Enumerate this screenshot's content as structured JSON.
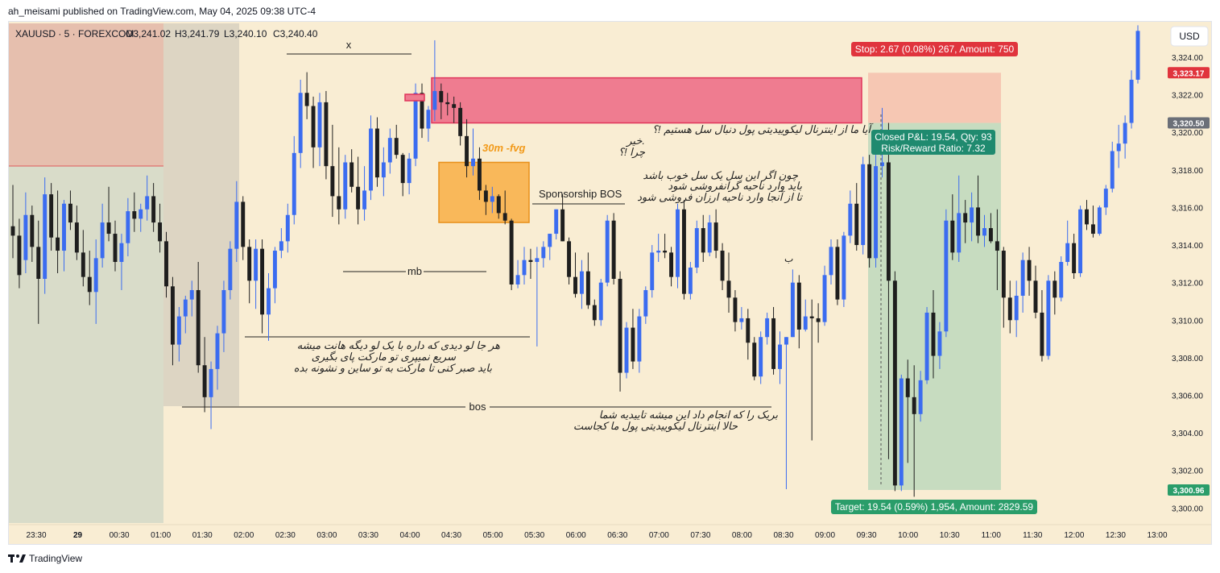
{
  "header": {
    "publisher": "ah_meisami published on TradingView.com, May 04, 2025 09:38 UTC-4"
  },
  "footer": {
    "brand": "TradingView"
  },
  "legend": {
    "symbol": "XAUUSD · 5 · FOREXCOM",
    "open": "O3,241.02",
    "high": "H3,241.79",
    "low": "L3,240.10",
    "close": "C3,240.40"
  },
  "currency_button": "USD",
  "colors": {
    "up": "#3b6cf0",
    "down": "#1e1e1e",
    "background": "#f9edd3",
    "stop_zone": "#f6c7b3",
    "target_zone": "#c7dcc0",
    "supply_zone": "#ef7c90",
    "fvg_zone": "#f9b85a",
    "stop_label": "#e0343d",
    "target_label": "#2a9d6a",
    "pnl_label": "#1f8a6f"
  },
  "chart_data": {
    "type": "candlestick",
    "title": "XAUUSD · 5 · FOREXCOM",
    "ylim": [
      3299.2,
      3325.8
    ],
    "y_ticks": [
      "3,324.00",
      "3,322.00",
      "3,320.00",
      "3,318.00",
      "3,316.00",
      "3,314.00",
      "3,312.00",
      "3,310.00",
      "3,308.00",
      "3,306.00",
      "3,304.00",
      "3,302.00",
      "3,300.00"
    ],
    "x_ticks": [
      "23:30",
      "29",
      "00:30",
      "01:00",
      "01:30",
      "02:00",
      "02:30",
      "03:00",
      "03:30",
      "04:00",
      "04:30",
      "05:00",
      "05:30",
      "06:00",
      "06:30",
      "07:00",
      "07:30",
      "08:00",
      "08:30",
      "09:00",
      "09:30",
      "10:00",
      "10:30",
      "11:00",
      "11:30",
      "12:00",
      "12:30",
      "13:00"
    ],
    "price_tags": [
      {
        "value": 3323.17,
        "text": "3,323.17",
        "color": "#e0343d"
      },
      {
        "value": 3320.5,
        "text": "3,320.50",
        "color": "#6b6f78"
      },
      {
        "value": 3300.96,
        "text": "3,300.96",
        "color": "#2a9d6a"
      }
    ],
    "candles": [
      [
        3315,
        3317.2,
        3313.3,
        3314.5
      ],
      [
        3314.5,
        3315.4,
        3311.7,
        3312.4
      ],
      [
        3313.2,
        3316.8,
        3312.5,
        3315.6
      ],
      [
        3315.6,
        3316.1,
        3313.1,
        3313.9
      ],
      [
        3313.9,
        3315.3,
        3309.8,
        3312.2
      ],
      [
        3312.2,
        3317.6,
        3311.4,
        3316.7
      ],
      [
        3316.7,
        3317.3,
        3313.7,
        3314.4
      ],
      [
        3314.4,
        3316.9,
        3312.5,
        3313.7
      ],
      [
        3313.7,
        3316.4,
        3312.6,
        3316.2
      ],
      [
        3316.2,
        3316.9,
        3314.8,
        3315.2
      ],
      [
        3315.2,
        3316.1,
        3313.2,
        3313.6
      ],
      [
        3313.6,
        3314.8,
        3311.8,
        3312.3
      ],
      [
        3312.3,
        3313.7,
        3310.8,
        3311.5
      ],
      [
        3311.5,
        3314.3,
        3309.8,
        3313.3
      ],
      [
        3313.3,
        3316.2,
        3312.8,
        3315.2
      ],
      [
        3315.2,
        3317.1,
        3314.2,
        3314.6
      ],
      [
        3314.6,
        3315.3,
        3312.6,
        3313.1
      ],
      [
        3313.1,
        3314.6,
        3311.6,
        3314.1
      ],
      [
        3314.1,
        3316.5,
        3313.4,
        3315.8
      ],
      [
        3315.8,
        3316.8,
        3314.7,
        3315.4
      ],
      [
        3315.4,
        3316.2,
        3314.7,
        3315.9
      ],
      [
        3315.9,
        3317.7,
        3315.3,
        3316.6
      ],
      [
        3316.6,
        3317.3,
        3314.7,
        3315.2
      ],
      [
        3315.2,
        3316.2,
        3313.6,
        3314.2
      ],
      [
        3314.2,
        3314.7,
        3311.2,
        3311.8
      ],
      [
        3311.8,
        3312.3,
        3307.6,
        3308.7
      ],
      [
        3308.7,
        3310.7,
        3307.8,
        3310.2
      ],
      [
        3310.2,
        3311.3,
        3309.3,
        3311.1
      ],
      [
        3311.1,
        3312.1,
        3310.2,
        3311.6
      ],
      [
        3311.6,
        3313.1,
        3307.2,
        3307.6
      ],
      [
        3307.6,
        3309.1,
        3305.1,
        3305.9
      ],
      [
        3305.9,
        3307.8,
        3304.2,
        3307.4
      ],
      [
        3307.4,
        3309.7,
        3306.3,
        3309.3
      ],
      [
        3309.3,
        3312.1,
        3308.3,
        3311.6
      ],
      [
        3311.6,
        3314.2,
        3311.1,
        3313.8
      ],
      [
        3313.8,
        3317.4,
        3313.1,
        3316.3
      ],
      [
        3316.3,
        3316.6,
        3313.2,
        3313.9
      ],
      [
        3313.9,
        3314.3,
        3310.9,
        3312.1
      ],
      [
        3312.1,
        3314.3,
        3310.6,
        3313.8
      ],
      [
        3313.8,
        3314.3,
        3309.3,
        3310.3
      ],
      [
        3310.3,
        3312.5,
        3308.9,
        3311.7
      ],
      [
        3311.7,
        3313.9,
        3310.9,
        3313.7
      ],
      [
        3313.7,
        3314.9,
        3313.3,
        3314.2
      ],
      [
        3314.2,
        3316.2,
        3313.6,
        3315.6
      ],
      [
        3315.6,
        3319.8,
        3315.1,
        3318.9
      ],
      [
        3318.9,
        3322.8,
        3318.1,
        3322.1
      ],
      [
        3322.1,
        3323.2,
        3320.7,
        3321.4
      ],
      [
        3321.4,
        3321.9,
        3318.1,
        3319.2
      ],
      [
        3319.2,
        3322.1,
        3318.2,
        3321.6
      ],
      [
        3321.6,
        3322.2,
        3317.5,
        3318.2
      ],
      [
        3318.2,
        3320.4,
        3315.5,
        3316.6
      ],
      [
        3316.6,
        3319.2,
        3315.1,
        3315.9
      ],
      [
        3315.9,
        3318.8,
        3315.4,
        3318.4
      ],
      [
        3318.4,
        3319.1,
        3316.8,
        3317.1
      ],
      [
        3317.1,
        3318.7,
        3315.1,
        3315.9
      ],
      [
        3315.9,
        3318.2,
        3315.3,
        3316.9
      ],
      [
        3316.9,
        3320.9,
        3316.4,
        3320.2
      ],
      [
        3320.2,
        3320.8,
        3317.1,
        3317.6
      ],
      [
        3317.6,
        3319.2,
        3316.6,
        3318.4
      ],
      [
        3318.4,
        3320.2,
        3317.8,
        3319.7
      ],
      [
        3319.7,
        3320.4,
        3318.6,
        3318.8
      ],
      [
        3318.8,
        3318.9,
        3316.6,
        3317.3
      ],
      [
        3317.3,
        3318.9,
        3316.7,
        3318.6
      ],
      [
        3318.6,
        3322.6,
        3318.2,
        3322.1
      ],
      [
        3322.1,
        3322.6,
        3319.7,
        3320.2
      ],
      [
        3320.2,
        3321.4,
        3319.5,
        3321.2
      ],
      [
        3321.2,
        3324.9,
        3320.6,
        3322.2
      ],
      [
        3322.2,
        3322.6,
        3320.7,
        3321.6
      ],
      [
        3321.6,
        3322.1,
        3320.9,
        3321.5
      ],
      [
        3321.5,
        3321.9,
        3320.5,
        3321.3
      ],
      [
        3321.3,
        3321.6,
        3319.3,
        3319.8
      ],
      [
        3319.8,
        3320.7,
        3317.6,
        3318.2
      ],
      [
        3318.2,
        3320.2,
        3317.7,
        3318.6
      ],
      [
        3318.6,
        3319.2,
        3316.4,
        3316.9
      ],
      [
        3316.9,
        3317.2,
        3315.6,
        3316.3
      ],
      [
        3316.3,
        3317.1,
        3315.7,
        3316.6
      ],
      [
        3316.6,
        3316.7,
        3315.4,
        3315.7
      ],
      [
        3315.7,
        3316.9,
        3315.1,
        3315.3
      ],
      [
        3315.3,
        3315.4,
        3311.6,
        3311.9
      ],
      [
        3311.9,
        3313.2,
        3311.7,
        3312.4
      ],
      [
        3312.4,
        3313.9,
        3311.9,
        3313.2
      ],
      [
        3313.2,
        3313.8,
        3312.2,
        3313.1
      ],
      [
        3313.1,
        3313.9,
        3308.6,
        3313.3
      ],
      [
        3313.3,
        3314.2,
        3312.8,
        3313.9
      ],
      [
        3313.9,
        3314.6,
        3313.2,
        3314.6
      ],
      [
        3314.6,
        3315.9,
        3314.3,
        3315.9
      ],
      [
        3315.9,
        3316.7,
        3314.2,
        3314.2
      ],
      [
        3314.2,
        3314.4,
        3311.9,
        3312.3
      ],
      [
        3312.3,
        3313.6,
        3311.2,
        3311.4
      ],
      [
        3311.4,
        3313.2,
        3310.6,
        3312.6
      ],
      [
        3312.6,
        3313.6,
        3310.6,
        3310.8
      ],
      [
        3310.8,
        3311.1,
        3309.7,
        3310.0
      ],
      [
        3310.0,
        3312.2,
        3309.7,
        3312.0
      ],
      [
        3312.0,
        3315.6,
        3311.8,
        3315.3
      ],
      [
        3315.3,
        3315.7,
        3311.9,
        3312.2
      ],
      [
        3312.2,
        3312.6,
        3306.2,
        3307.2
      ],
      [
        3307.2,
        3309.9,
        3306.9,
        3309.6
      ],
      [
        3309.6,
        3310.6,
        3307.4,
        3307.8
      ],
      [
        3307.8,
        3310.6,
        3307.2,
        3310.2
      ],
      [
        3310.2,
        3311.8,
        3309.8,
        3311.6
      ],
      [
        3311.6,
        3314.0,
        3311.2,
        3313.6
      ],
      [
        3313.6,
        3314.6,
        3313.1,
        3313.7
      ],
      [
        3313.7,
        3314.6,
        3313.3,
        3313.6
      ],
      [
        3313.6,
        3313.9,
        3311.8,
        3312.3
      ],
      [
        3312.3,
        3316.2,
        3311.7,
        3315.9
      ],
      [
        3315.9,
        3316.4,
        3311.1,
        3311.4
      ],
      [
        3311.4,
        3313.1,
        3311.1,
        3312.8
      ],
      [
        3312.8,
        3315.3,
        3312.5,
        3314.9
      ],
      [
        3314.9,
        3315.6,
        3313.1,
        3313.6
      ],
      [
        3313.6,
        3315.6,
        3313.4,
        3315.2
      ],
      [
        3315.2,
        3315.9,
        3313.3,
        3313.7
      ],
      [
        3313.7,
        3314.1,
        3311.6,
        3312.1
      ],
      [
        3312.1,
        3313.6,
        3310.4,
        3311.2
      ],
      [
        3311.2,
        3311.6,
        3309.4,
        3309.9
      ],
      [
        3309.9,
        3310.7,
        3309.5,
        3310.1
      ],
      [
        3310.1,
        3310.6,
        3307.9,
        3308.8
      ],
      [
        3308.8,
        3309.1,
        3306.8,
        3307.0
      ],
      [
        3307.0,
        3309.4,
        3306.6,
        3309.1
      ],
      [
        3309.1,
        3310.4,
        3308.7,
        3310.1
      ],
      [
        3310.1,
        3310.7,
        3307.1,
        3307.4
      ],
      [
        3307.4,
        3309.4,
        3306.6,
        3308.7
      ],
      [
        3308.7,
        3309.1,
        3301.0,
        3309.1
      ],
      [
        3309.1,
        3312.7,
        3309.1,
        3312.0
      ],
      [
        3312.0,
        3312.4,
        3308.5,
        3309.5
      ],
      [
        3309.5,
        3311.1,
        3309.4,
        3310.2
      ],
      [
        3310.2,
        3311.1,
        3303.6,
        3310.1
      ],
      [
        3310.1,
        3310.9,
        3308.8,
        3309.9
      ],
      [
        3309.9,
        3312.9,
        3309.7,
        3312.4
      ],
      [
        3312.4,
        3314.3,
        3311.9,
        3313.9
      ],
      [
        3313.9,
        3314.3,
        3310.8,
        3311.1
      ],
      [
        3311.1,
        3314.7,
        3310.7,
        3314.5
      ],
      [
        3314.5,
        3316.9,
        3314.1,
        3316.2
      ],
      [
        3316.2,
        3317.3,
        3313.7,
        3314.0
      ],
      [
        3314.0,
        3318.7,
        3313.5,
        3318.3
      ],
      [
        3318.3,
        3318.8,
        3312.8,
        3313.3
      ],
      [
        3313.3,
        3318.8,
        3312.8,
        3318.2
      ],
      [
        3318.2,
        3321.3,
        3317.6,
        3318.4
      ],
      [
        3318.4,
        3320.5,
        3302.6,
        3312.1
      ],
      [
        3312.1,
        3312.6,
        3300.9,
        3301.2
      ],
      [
        3301.2,
        3307.1,
        3300.9,
        3306.9
      ],
      [
        3306.9,
        3307.9,
        3302.4,
        3305.9
      ],
      [
        3305.9,
        3307.6,
        3300.6,
        3305.0
      ],
      [
        3305.0,
        3307.3,
        3304.6,
        3306.8
      ],
      [
        3306.8,
        3310.7,
        3306.6,
        3310.4
      ],
      [
        3310.4,
        3311.6,
        3306.9,
        3308.1
      ],
      [
        3308.1,
        3309.9,
        3307.4,
        3309.4
      ],
      [
        3309.4,
        3315.9,
        3309.1,
        3315.3
      ],
      [
        3315.3,
        3316.7,
        3313.2,
        3313.6
      ],
      [
        3313.6,
        3317.7,
        3313.1,
        3315.7
      ],
      [
        3315.7,
        3316.4,
        3314.1,
        3315.2
      ],
      [
        3315.2,
        3316.8,
        3314.2,
        3316.0
      ],
      [
        3316.0,
        3317.7,
        3314.1,
        3314.5
      ],
      [
        3314.5,
        3315.6,
        3313.9,
        3314.9
      ],
      [
        3314.9,
        3315.7,
        3314.1,
        3314.2
      ],
      [
        3314.2,
        3315.9,
        3311.6,
        3313.7
      ],
      [
        3313.7,
        3313.9,
        3309.6,
        3311.2
      ],
      [
        3311.2,
        3312.1,
        3309.3,
        3310.0
      ],
      [
        3310.0,
        3312.1,
        3309.1,
        3311.3
      ],
      [
        3311.3,
        3313.6,
        3310.4,
        3313.2
      ],
      [
        3313.2,
        3313.9,
        3311.3,
        3312.1
      ],
      [
        3312.1,
        3312.9,
        3310.1,
        3310.4
      ],
      [
        3310.4,
        3311.6,
        3307.8,
        3308.1
      ],
      [
        3308.1,
        3312.4,
        3307.9,
        3312.1
      ],
      [
        3312.1,
        3312.6,
        3310.3,
        3311.2
      ],
      [
        3311.2,
        3313.4,
        3311.0,
        3313.1
      ],
      [
        3313.1,
        3315.3,
        3312.9,
        3314.1
      ],
      [
        3314.1,
        3314.6,
        3312.2,
        3312.5
      ],
      [
        3312.5,
        3316.1,
        3312.3,
        3315.9
      ],
      [
        3315.9,
        3316.4,
        3314.8,
        3315.1
      ],
      [
        3315.1,
        3316.1,
        3314.4,
        3314.6
      ],
      [
        3314.6,
        3316.1,
        3314.5,
        3316.0
      ],
      [
        3316.0,
        3317.2,
        3315.6,
        3317.0
      ],
      [
        3317.0,
        3319.5,
        3316.8,
        3319.0
      ],
      [
        3319.0,
        3320.4,
        3318.1,
        3319.4
      ],
      [
        3319.4,
        3320.9,
        3318.6,
        3320.5
      ],
      [
        3320.5,
        3323.3,
        3320.2,
        3322.8
      ],
      [
        3322.8,
        3325.7,
        3322.6,
        3325.4
      ]
    ],
    "zones": {
      "stop": {
        "from": 3320.5,
        "to": 3323.17
      },
      "target": {
        "from": 3300.96,
        "to": 3320.5
      },
      "supply": {
        "from": 3320.5,
        "to": 3322.9
      },
      "fvg": {
        "from": 3315.2,
        "to": 3318.4
      }
    },
    "levels": {
      "x": 3323.8,
      "mb": 3313.4,
      "bos": 3305.2,
      "sponsorship_bos": 3315.6,
      "bottom_line": 3309.0,
      "red_line": 3318.0
    }
  },
  "annotations": {
    "stop_label": "Stop: 2.67 (0.08%) 267, Amount: 750",
    "target_label": "Target: 19.54 (0.59%) 1,954, Amount: 2829.59",
    "pnl_line1": "Closed P&L: 19.54, Qty: 93",
    "pnl_line2": "Risk/Reward Ratio: 7.32",
    "fvg_label": "30m -fvg",
    "sponsorship": "Sponsorship BOS",
    "x_label": "x",
    "mb_label": "mb",
    "bos_label": "bos",
    "b_label": "ب",
    "note1": [
      "آیا ما از اینترنال لیکوییدیتی پول دنبال سل هستیم !؟",
      "خیر.",
      "چرا !؟"
    ],
    "note2": [
      "چون اگر این سل یک سل خوب باشد",
      "باید وارد ناحیه گرانفروشی شود",
      "تا از آنجا وارد ناحیه ارزان فروشی شود"
    ],
    "note3": [
      "هر جا لو دیدی که داره با یک لو دیگه هانت میشه",
      "سریع نمیپری تو مارکت پای بگیری",
      "باید صبر کنی تا مارکت به تو ساین و نشونه بده"
    ],
    "note4": [
      "بریک را که انجام داد این میشه تاییدیه شما",
      "حالا اینترنال لیکوییدیتی پول ما کجاست"
    ]
  }
}
